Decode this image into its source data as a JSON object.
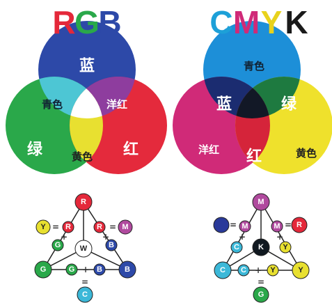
{
  "rgb": {
    "title": [
      "R",
      "G",
      "B"
    ],
    "regions": {
      "blue": "蓝",
      "cyan": "青色",
      "magenta": "洋红",
      "green": "绿",
      "yellow": "黄色",
      "red": "红"
    },
    "nodes": [
      "R",
      "Y",
      "R",
      "R",
      "M",
      "G",
      "W",
      "B",
      "G",
      "G",
      "B",
      "B",
      "C"
    ],
    "signs": [
      "=",
      "+",
      "=",
      "+",
      "+",
      "="
    ]
  },
  "cmyk": {
    "title": [
      "C",
      "M",
      "Y",
      "K"
    ],
    "regions": {
      "cyan": "青色",
      "blue": "蓝",
      "green": "绿",
      "magenta": "洋红",
      "red": "红",
      "yellow": "黄色"
    },
    "nodes": [
      "M",
      "M",
      "M",
      "R",
      "C",
      "K",
      "Y",
      "C",
      "C",
      "Y",
      "Y",
      "G"
    ],
    "signs": [
      "=",
      "+",
      "=",
      "+",
      "+",
      "="
    ]
  }
}
